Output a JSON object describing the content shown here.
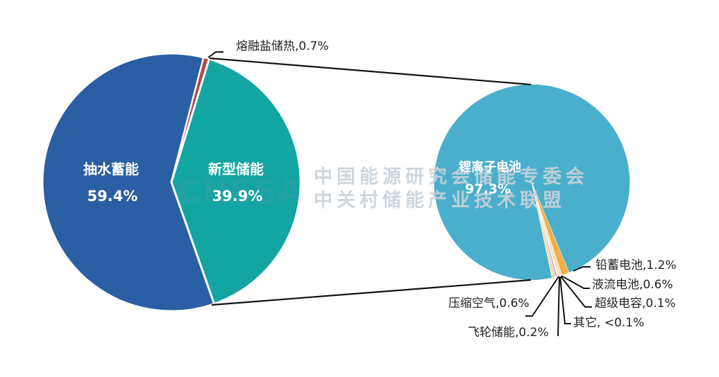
{
  "chart_data": {
    "type": "pie",
    "subtype": "pie-of-pie",
    "title": "",
    "colors": {
      "pumped_hydro": "#2B5FA3",
      "new_storage": "#12A5A2",
      "molten_salt": "#B24A4A",
      "lithium_ion": "#4AAFCC",
      "lead_acid": "#F0AE48",
      "flow_battery": "#F6E3B8",
      "supercapacitor": "#FBF2DA",
      "other": "#C9A5C9",
      "flywheel": "#A07BB6",
      "compressed_air": "#F3DFA8"
    },
    "primary_pie": {
      "slices": [
        {
          "label": "抽水蓄能",
          "value": 59.4,
          "display": "59.4%",
          "color_key": "pumped_hydro",
          "label_inside": true
        },
        {
          "label": "新型储能",
          "value": 39.9,
          "display": "39.9%",
          "color_key": "new_storage",
          "label_inside": true,
          "expanded": true
        },
        {
          "label": "熔融盐储热",
          "value": 0.7,
          "display": "熔融盐储热,0.7%",
          "color_key": "molten_salt",
          "label_inside": false
        }
      ]
    },
    "secondary_pie": {
      "parent": "新型储能",
      "slices": [
        {
          "label": "锂离子电池",
          "value": 97.3,
          "display": "97.3%",
          "color_key": "lithium_ion",
          "label_inside": true
        },
        {
          "label": "铅蓄电池",
          "value": 1.2,
          "display": "铅蓄电池,1.2%",
          "color_key": "lead_acid"
        },
        {
          "label": "液流电池",
          "value": 0.6,
          "display": "液流电池,0.6%",
          "color_key": "flow_battery"
        },
        {
          "label": "超级电容",
          "value": 0.1,
          "display": "超级电容,0.1%",
          "color_key": "supercapacitor"
        },
        {
          "label": "其它",
          "value": 0.05,
          "display": "其它, <0.1%",
          "color_key": "other"
        },
        {
          "label": "飞轮储能",
          "value": 0.2,
          "display": "飞轮储能,0.2%",
          "color_key": "flywheel"
        },
        {
          "label": "压缩空气",
          "value": 0.6,
          "display": "压缩空气,0.6%",
          "color_key": "compressed_air"
        }
      ]
    }
  },
  "labels": {
    "pumped_hydro_name": "抽水蓄能",
    "pumped_hydro_pct": "59.4%",
    "new_storage_name": "新型储能",
    "new_storage_pct": "39.9%",
    "molten_salt": "熔融盐储热,0.7%",
    "lithium_name": "锂离子电池",
    "lithium_pct": "97.3%",
    "lead_acid": "铅蓄电池,1.2%",
    "flow_battery": "液流电池,0.6%",
    "supercapacitor": "超级电容,0.1%",
    "other": "其它, <0.1%",
    "flywheel": "飞轮储能,0.2%",
    "compressed_air": "压缩空气,0.6%"
  },
  "watermark": {
    "logo": "CNESA",
    "line1": "中国能源研究会储能专委会",
    "line2": "中关村储能产业技术联盟"
  }
}
